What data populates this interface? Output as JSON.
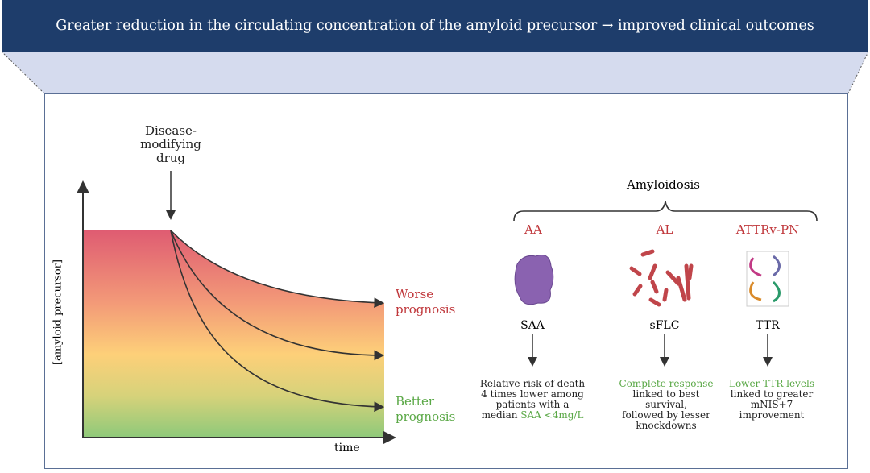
{
  "header": {
    "title": "Greater reduction in the circulating concentration of the amyloid precursor →  improved clinical outcomes"
  },
  "colors": {
    "header": "#1e3d6b",
    "panel": "#d5dbee",
    "bad": "#c0383c",
    "good": "#5aa846"
  },
  "chart": {
    "drug_label": "Disease-\nmodifying\ndrug",
    "ylabel": "[amyloid precursor]",
    "xlabel": "time",
    "worse": "Worse\nprognosis",
    "better": "Better\nprognosis"
  },
  "amyloidosis": {
    "title": "Amyloidosis",
    "types": [
      {
        "name": "AA",
        "protein": "SAA",
        "icon": "saa-protein-icon",
        "text_plain": "Relative risk of death\n4 times lower among\npatients with a\nmedian ",
        "text_green": "SAA <4mg/L"
      },
      {
        "name": "AL",
        "protein": "sFLC",
        "icon": "light-chain-icon",
        "text_green": "Complete response",
        "text_plain": "linked to best survival,\nfollowed by lesser\nknockdowns"
      },
      {
        "name": "ATTRv-PN",
        "protein": "TTR",
        "icon": "ttr-tetramer-icon",
        "text_green": "Lower TTR levels",
        "text_plain": "linked to greater\nmNIS+7\nimprovement"
      }
    ]
  }
}
